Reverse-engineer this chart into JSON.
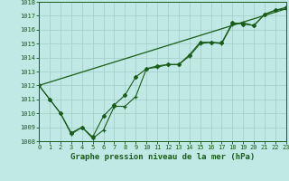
{
  "title": "Graphe pression niveau de la mer (hPa)",
  "background_color": "#c0e8e4",
  "grid_color": "#a0ccc8",
  "line_color": "#1a5c1a",
  "x_min": 0,
  "x_max": 23,
  "y_min": 1008,
  "y_max": 1018,
  "series1_x": [
    0,
    1,
    2,
    3,
    4,
    5,
    6,
    7,
    8,
    9,
    10,
    11,
    12,
    13,
    14,
    15,
    16,
    17,
    18,
    19,
    20,
    21,
    22,
    23
  ],
  "series1_y": [
    1012,
    1011,
    1010,
    1008.5,
    1009,
    1008.2,
    1008.8,
    1010.5,
    1010.5,
    1011.2,
    1013.2,
    1013.3,
    1013.5,
    1013.5,
    1014.1,
    1015.0,
    1015.1,
    1015.0,
    1016.4,
    1016.5,
    1016.3,
    1017.1,
    1017.4,
    1017.5
  ],
  "series2_x": [
    0,
    1,
    2,
    3,
    4,
    5,
    6,
    7,
    8,
    9,
    10,
    11,
    12,
    13,
    14,
    15,
    16,
    17,
    18,
    19,
    20,
    21,
    22,
    23
  ],
  "series2_y": [
    1012,
    1011,
    1010,
    1008.6,
    1009,
    1008.3,
    1009.8,
    1010.6,
    1011.3,
    1012.6,
    1013.2,
    1013.4,
    1013.5,
    1013.5,
    1014.2,
    1015.1,
    1015.1,
    1015.05,
    1016.5,
    1016.4,
    1016.3,
    1017.1,
    1017.4,
    1017.6
  ],
  "trend_x": [
    0,
    23
  ],
  "trend_y": [
    1012,
    1017.5
  ],
  "yticks": [
    1008,
    1009,
    1010,
    1011,
    1012,
    1013,
    1014,
    1015,
    1016,
    1017,
    1018
  ],
  "xticks": [
    0,
    1,
    2,
    3,
    4,
    5,
    6,
    7,
    8,
    9,
    10,
    11,
    12,
    13,
    14,
    15,
    16,
    17,
    18,
    19,
    20,
    21,
    22,
    23
  ],
  "xlabel_fontsize": 6.5,
  "tick_fontsize": 5.0
}
